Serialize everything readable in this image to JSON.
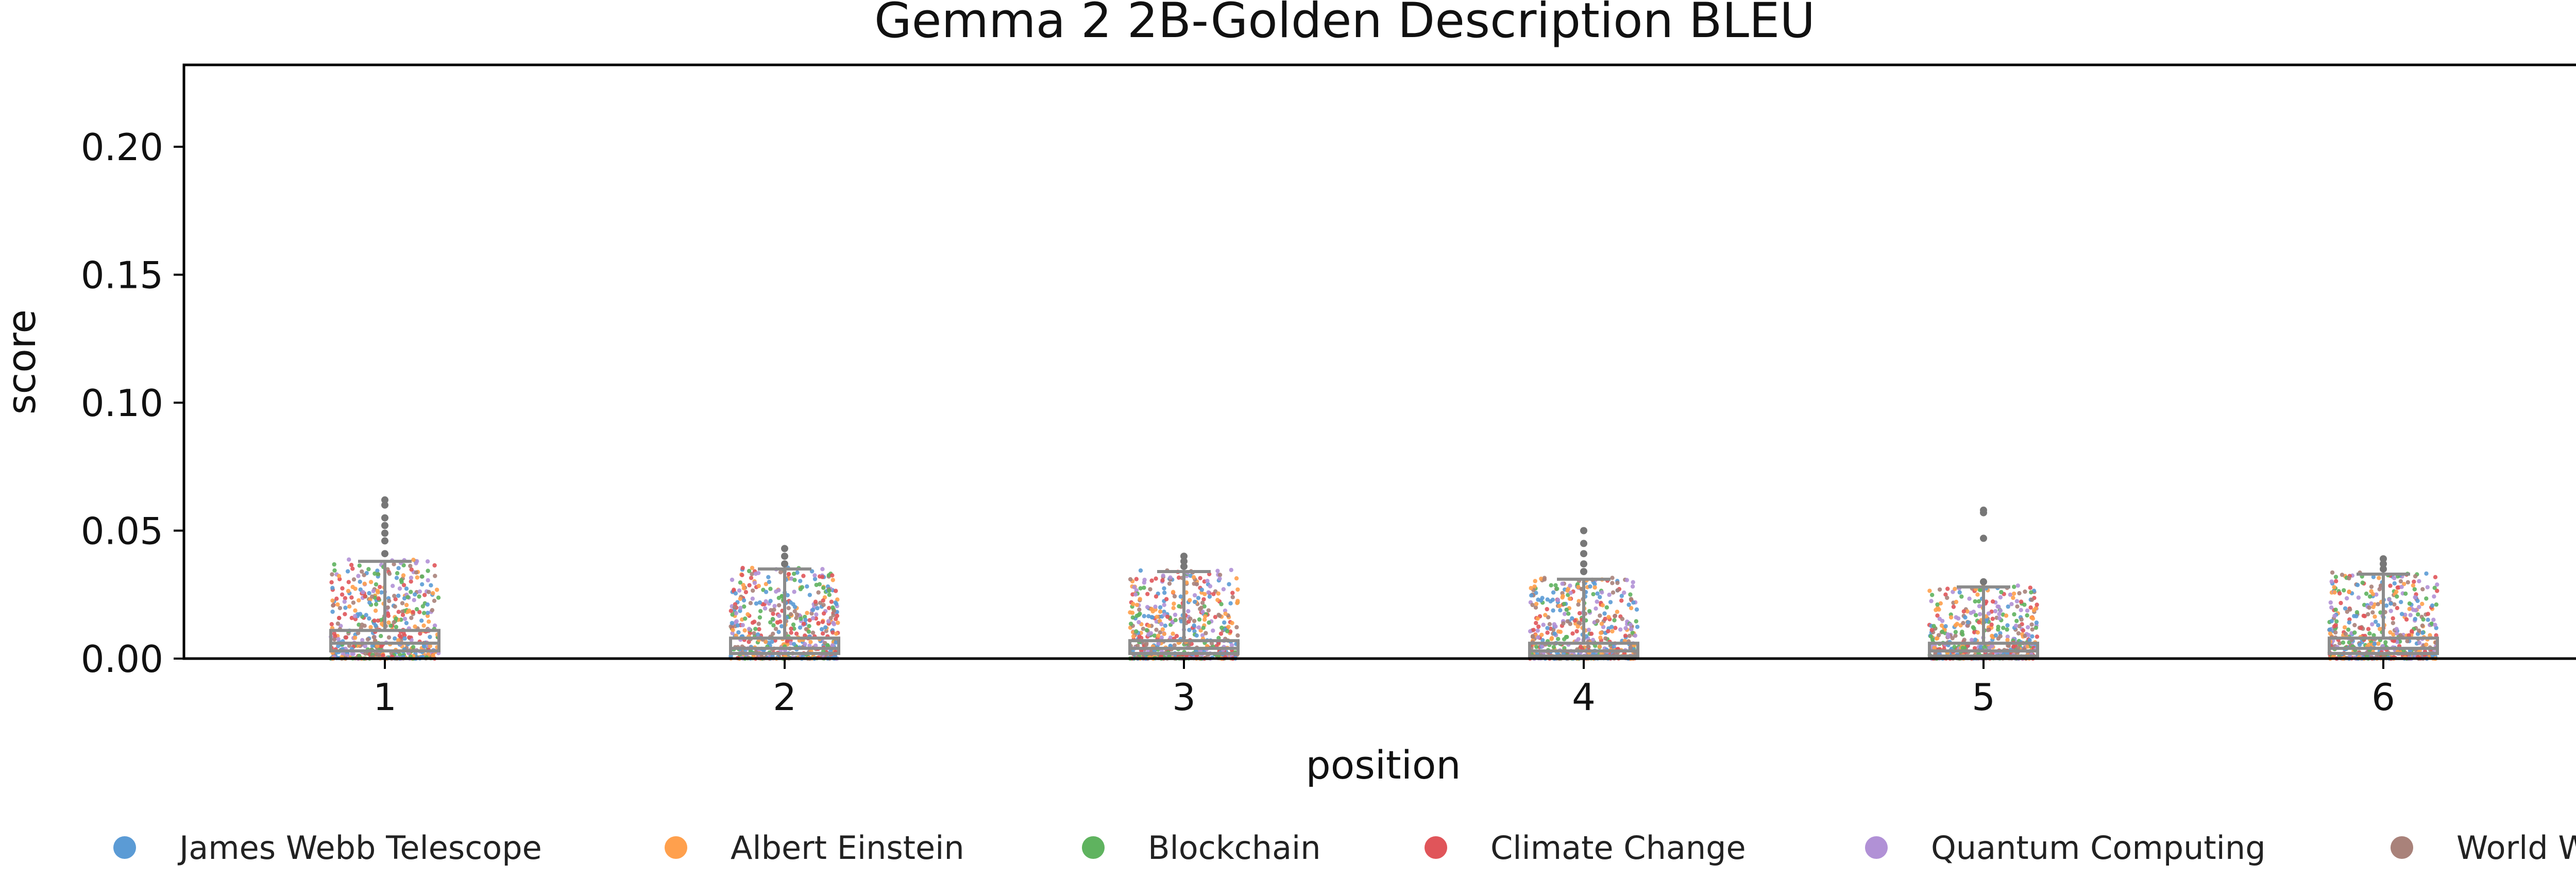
{
  "chart_data": {
    "type": "box+strip",
    "title": "Gemma 2 2B-Golden Description BLEU",
    "xlabel": "position",
    "ylabel": "score",
    "categories": [
      "1",
      "2",
      "3",
      "4",
      "5",
      "6"
    ],
    "ylim": [
      0,
      0.232
    ],
    "yticks": [
      "0.00",
      "0.05",
      "0.10",
      "0.15",
      "0.20"
    ],
    "ytick_values": [
      0.0,
      0.05,
      0.1,
      0.15,
      0.2
    ],
    "grid": false,
    "legend_placement": "bottom",
    "box_stats": [
      {
        "position": "1",
        "q1": 0.003,
        "median": 0.006,
        "q3": 0.011,
        "whisker_high": 0.038,
        "outliers": [
          0.041,
          0.046,
          0.049,
          0.052,
          0.055,
          0.06,
          0.062
        ]
      },
      {
        "position": "2",
        "q1": 0.002,
        "median": 0.004,
        "q3": 0.008,
        "whisker_high": 0.035,
        "outliers": [
          0.037,
          0.04,
          0.043
        ]
      },
      {
        "position": "3",
        "q1": 0.002,
        "median": 0.004,
        "q3": 0.007,
        "whisker_high": 0.034,
        "outliers": [
          0.036,
          0.038,
          0.04
        ]
      },
      {
        "position": "4",
        "q1": 0.001,
        "median": 0.003,
        "q3": 0.006,
        "whisker_high": 0.031,
        "outliers": [
          0.034,
          0.037,
          0.041,
          0.045,
          0.05
        ]
      },
      {
        "position": "5",
        "q1": 0.001,
        "median": 0.003,
        "q3": 0.006,
        "whisker_high": 0.028,
        "outliers": [
          0.03,
          0.047,
          0.057,
          0.058
        ]
      },
      {
        "position": "6",
        "q1": 0.002,
        "median": 0.004,
        "q3": 0.008,
        "whisker_high": 0.033,
        "outliers": [
          0.035,
          0.037,
          0.039
        ]
      }
    ],
    "series": [
      {
        "name": "James Webb Telescope",
        "color": "#5b9bd5"
      },
      {
        "name": "Albert Einstein",
        "color": "#ffa04d"
      },
      {
        "name": "Blockchain",
        "color": "#5fb35f"
      },
      {
        "name": "Climate Change",
        "color": "#e0555a"
      },
      {
        "name": "Quantum Computing",
        "color": "#b191d6"
      },
      {
        "name": "World War II",
        "color": "#a9827a"
      }
    ]
  },
  "colors": {
    "box": "#8c8c8c",
    "axes": "#000000"
  }
}
